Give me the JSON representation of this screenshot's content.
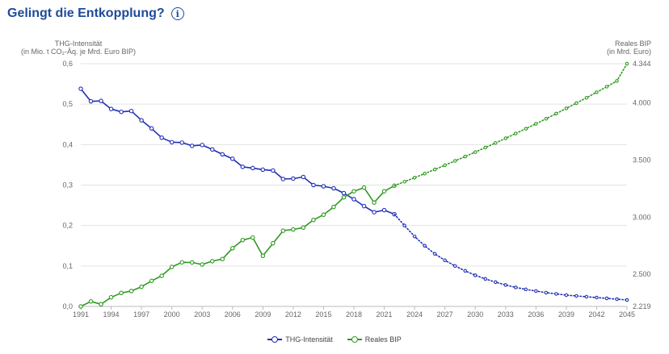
{
  "header": {
    "title": "Gelingt die Entkopplung?",
    "info_icon": "info-icon"
  },
  "axis_titles": {
    "left_line1": "THG-Intensität",
    "left_line2": "(in Mio. t CO₂-Äq. je Mrd. Euro BIP)",
    "right_line1": "Reales BIP",
    "right_line2": "(in Mrd. Euro)"
  },
  "legend": {
    "items": [
      {
        "label": "THG-Intensität",
        "color": "#1f2fb5"
      },
      {
        "label": "Reales BIP",
        "color": "#2e9a1f"
      }
    ]
  },
  "chart_data": {
    "type": "line",
    "x_ticks": [
      1991,
      1994,
      1997,
      2000,
      2003,
      2006,
      2009,
      2012,
      2015,
      2018,
      2021,
      2024,
      2027,
      2030,
      2033,
      2036,
      2039,
      2042,
      2045
    ],
    "y_left": {
      "min": 0,
      "max": 0.6,
      "ticks": [
        "0,0",
        "0,1",
        "0,2",
        "0,3",
        "0,4",
        "0,5",
        "0,6"
      ]
    },
    "y_right": {
      "min": 2219,
      "max": 4344,
      "ticks": [
        {
          "value": 2219,
          "label": "2.219"
        },
        {
          "value": 2500,
          "label": "2.500"
        },
        {
          "value": 3000,
          "label": "3.000"
        },
        {
          "value": 3500,
          "label": "3.500"
        },
        {
          "value": 4000,
          "label": "4.000"
        },
        {
          "value": 4344,
          "label": "4.344"
        }
      ]
    },
    "grid": "horizontal",
    "legend_position": "bottom-center",
    "series": [
      {
        "name": "THG-Intensität",
        "axis": "left",
        "color": "#1f2fb5",
        "style": "solid",
        "x": [
          1991,
          1992,
          1993,
          1994,
          1995,
          1996,
          1997,
          1998,
          1999,
          2000,
          2001,
          2002,
          2003,
          2004,
          2005,
          2006,
          2007,
          2008,
          2009,
          2010,
          2011,
          2012,
          2013,
          2014,
          2015,
          2016,
          2017,
          2018,
          2019,
          2020,
          2021,
          2022
        ],
        "y": [
          0.538,
          0.507,
          0.508,
          0.488,
          0.481,
          0.483,
          0.46,
          0.44,
          0.417,
          0.406,
          0.405,
          0.397,
          0.399,
          0.388,
          0.376,
          0.365,
          0.345,
          0.342,
          0.338,
          0.336,
          0.315,
          0.316,
          0.32,
          0.3,
          0.297,
          0.292,
          0.28,
          0.265,
          0.248,
          0.233,
          0.238,
          0.228
        ]
      },
      {
        "name": "THG-Intensität",
        "axis": "left",
        "color": "#1f2fb5",
        "style": "dotted",
        "x": [
          2022,
          2023,
          2024,
          2025,
          2026,
          2027,
          2028,
          2029,
          2030,
          2031,
          2032,
          2033,
          2034,
          2035,
          2036,
          2037,
          2038,
          2039,
          2040,
          2041,
          2042,
          2043,
          2044,
          2045
        ],
        "y": [
          0.228,
          0.2,
          0.173,
          0.15,
          0.13,
          0.114,
          0.1,
          0.088,
          0.077,
          0.068,
          0.06,
          0.053,
          0.047,
          0.042,
          0.038,
          0.034,
          0.031,
          0.028,
          0.026,
          0.024,
          0.022,
          0.02,
          0.018,
          0.016
        ]
      },
      {
        "name": "Reales BIP",
        "axis": "right",
        "color": "#2e9a1f",
        "style": "solid",
        "x": [
          1991,
          1992,
          1993,
          1994,
          1995,
          1996,
          1997,
          1998,
          1999,
          2000,
          2001,
          2002,
          2003,
          2004,
          2005,
          2006,
          2007,
          2008,
          2009,
          2010,
          2011,
          2012,
          2013,
          2014,
          2015,
          2016,
          2017,
          2018,
          2019,
          2020,
          2021,
          2022
        ],
        "y": [
          2219,
          2263,
          2238,
          2299,
          2337,
          2354,
          2391,
          2443,
          2487,
          2565,
          2605,
          2604,
          2586,
          2615,
          2634,
          2729,
          2800,
          2822,
          2662,
          2772,
          2882,
          2893,
          2909,
          2976,
          3022,
          3090,
          3174,
          3227,
          3259,
          3128,
          3227,
          3276
        ]
      },
      {
        "name": "Reales BIP",
        "axis": "right",
        "color": "#2e9a1f",
        "style": "dotted",
        "x": [
          2022,
          2023,
          2024,
          2025,
          2026,
          2027,
          2028,
          2029,
          2030,
          2031,
          2032,
          2033,
          2034,
          2035,
          2036,
          2037,
          2038,
          2039,
          2040,
          2041,
          2042,
          2043,
          2044,
          2045
        ],
        "y": [
          3276,
          3311,
          3346,
          3382,
          3418,
          3455,
          3493,
          3531,
          3570,
          3610,
          3650,
          3691,
          3733,
          3775,
          3818,
          3862,
          3907,
          3953,
          3999,
          4046,
          4094,
          4143,
          4193,
          4344
        ]
      }
    ]
  }
}
